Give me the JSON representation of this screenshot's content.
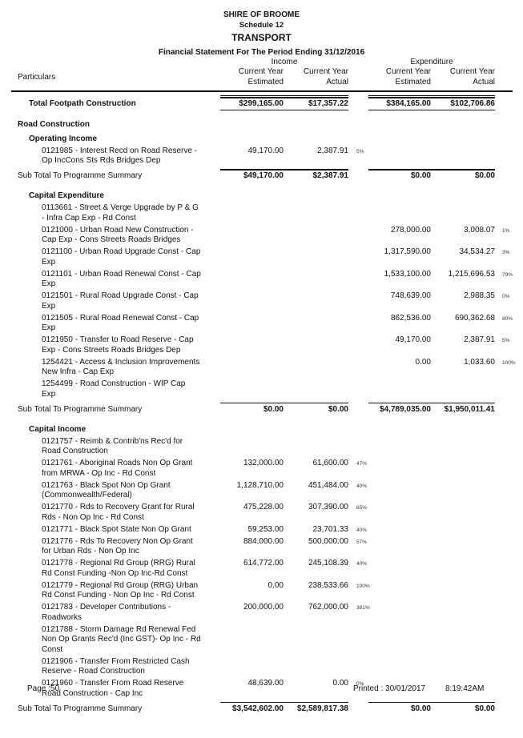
{
  "header": {
    "org": "SHIRE OF BROOME",
    "schedule": "Schedule 12",
    "title": "TRANSPORT",
    "subtitle": "Financial Statement For The Period Ending 31/12/2016"
  },
  "columns": {
    "particulars": "Particulars",
    "income": "Income",
    "expenditure": "Expenditure",
    "inc_est": "Current Year\nEstimated",
    "inc_act": "Current Year\nActual",
    "exp_est": "Current Year\nEstimated",
    "exp_act": "Current Year\nActual"
  },
  "rows": [
    {
      "type": "total",
      "desc": "Total Footpath Construction",
      "inc_est": "$299,165.00",
      "inc_act": "$17,357.22",
      "exp_est": "$384,165.00",
      "exp_act": "$102,706.86"
    },
    {
      "type": "section",
      "desc": "Road Construction"
    },
    {
      "type": "subhead",
      "desc": "Operating Income"
    },
    {
      "type": "item",
      "desc": "0121985 - Interest Recd on Road Reserve -\nOp IncCons Sts Rds Bridges Dep",
      "inc_est": "49,170.00",
      "inc_act": "2,387.91",
      "inc_pct": "5%"
    },
    {
      "type": "subtotal",
      "desc": "Sub Total To Programme Summary",
      "inc_est": "$49,170.00",
      "inc_act": "$2,387.91",
      "exp_est": "$0.00",
      "exp_act": "$0.00"
    },
    {
      "type": "subhead",
      "desc": "Capital Expenditure"
    },
    {
      "type": "item",
      "desc": "0113661 - Street & Verge Upgrade by P & G\n- Infra Cap Exp - Rd Const"
    },
    {
      "type": "item",
      "desc": "0121000 - Urban Road New Construction -\nCap Exp - Cons Streets Roads Bridges",
      "exp_est": "278,000.00",
      "exp_act": "3,008.07",
      "exp_pct": "1%"
    },
    {
      "type": "item",
      "desc": "0121100 - Urban Road Upgrade Const - Cap\nExp",
      "exp_est": "1,317,590.00",
      "exp_act": "34,534.27",
      "exp_pct": "3%"
    },
    {
      "type": "item",
      "desc": "0121101 - Urban Road Renewal Const - Cap\nExp",
      "exp_est": "1,533,100.00",
      "exp_act": "1,215,696.53",
      "exp_pct": "79%"
    },
    {
      "type": "item",
      "desc": "0121501 - Rural Road Upgrade Const - Cap\nExp",
      "exp_est": "748,639.00",
      "exp_act": "2,988.35",
      "exp_pct": "0%"
    },
    {
      "type": "item",
      "desc": "0121505 - Rural Road Renewal Const - Cap\nExp",
      "exp_est": "862,536.00",
      "exp_act": "690,362.68",
      "exp_pct": "80%"
    },
    {
      "type": "item",
      "desc": "0121950 - Transfer to Road Reserve - Cap\nExp - Cons Streets Roads Bridges Dep",
      "exp_est": "49,170.00",
      "exp_act": "2,387.91",
      "exp_pct": "5%"
    },
    {
      "type": "item",
      "desc": "1254421 - Access & Inclusion Improvements\nNew Infra - Cap Exp",
      "exp_est": "0.00",
      "exp_act": "1,033.60",
      "exp_pct": "100%"
    },
    {
      "type": "item",
      "desc": "1254499 - Road Construction - WIP Cap\nExp"
    },
    {
      "type": "subtotal",
      "desc": "Sub Total To Programme Summary",
      "inc_est": "$0.00",
      "inc_act": "$0.00",
      "exp_est": "$4,789,035.00",
      "exp_act": "$1,950,011.41"
    },
    {
      "type": "subhead",
      "desc": "Capital Income"
    },
    {
      "type": "item",
      "desc": "0121757 - Reimb & Contrib'ns Rec'd for\nRoad Construction"
    },
    {
      "type": "item",
      "desc": "0121761 - Aboriginal Roads Non Op Grant\nfrom MRWA - Op Inc - Rd Const",
      "inc_est": "132,000.00",
      "inc_act": "61,600.00",
      "inc_pct": "47%"
    },
    {
      "type": "item",
      "desc": "0121763 - Black Spot Non Op Grant\n(Commonwealth/Federal)",
      "inc_est": "1,128,710.00",
      "inc_act": "451,484.00",
      "inc_pct": "40%"
    },
    {
      "type": "item",
      "desc": "0121770 - Rds to Recovery Grant for Rural\nRds - Non Op Inc - Rd Const",
      "inc_est": "475,228.00",
      "inc_act": "307,390.00",
      "inc_pct": "65%"
    },
    {
      "type": "item",
      "desc": "0121771 - Black Spot State Non Op Grant",
      "inc_est": "59,253.00",
      "inc_act": "23,701.33",
      "inc_pct": "40%"
    },
    {
      "type": "item",
      "desc": "0121776 - Rds To Recovery Non Op Grant\nfor Urban Rds - Non Op Inc",
      "inc_est": "884,000.00",
      "inc_act": "500,000.00",
      "inc_pct": "57%"
    },
    {
      "type": "item",
      "desc": "0121778 - Regional Rd Group (RRG)  Rural\nRd Const Funding -Non Op Inc-Rd Const",
      "inc_est": "614,772.00",
      "inc_act": "245,108.39",
      "inc_pct": "40%"
    },
    {
      "type": "item",
      "desc": "0121779 - Regional Rd Group (RRG)  Urban\nRd Const Funding - Non Op Inc - Rd Const",
      "inc_est": "0.00",
      "inc_act": "238,533.66",
      "inc_pct": "100%"
    },
    {
      "type": "item",
      "desc": "0121783 - Developer Contributions -\nRoadworks",
      "inc_est": "200,000.00",
      "inc_act": "762,000.00",
      "inc_pct": "381%"
    },
    {
      "type": "item",
      "desc": "0121788 - Storm Damage Rd Renewal Fed\nNon Op Grants Rec'd (Inc GST)- Op Inc - Rd\nConst"
    },
    {
      "type": "item",
      "desc": "0121906 - Transfer From Restricted Cash\nReserve - Road Construction"
    },
    {
      "type": "item",
      "desc": "0121960 - Transfer From Road Reserve\nRoad Construction - Cap Inc",
      "inc_est": "48,639.00",
      "inc_act": "0.00",
      "inc_pct": "0%"
    },
    {
      "type": "subtotal",
      "desc": "Sub Total To Programme Summary",
      "inc_est": "$3,542,602.00",
      "inc_act": "$2,589,817.38",
      "exp_est": "$0.00",
      "exp_act": "$0.00"
    }
  ],
  "footer": {
    "page": "Page :50",
    "printed": "Printed :  30/01/2017",
    "time": "8:19:42AM"
  }
}
